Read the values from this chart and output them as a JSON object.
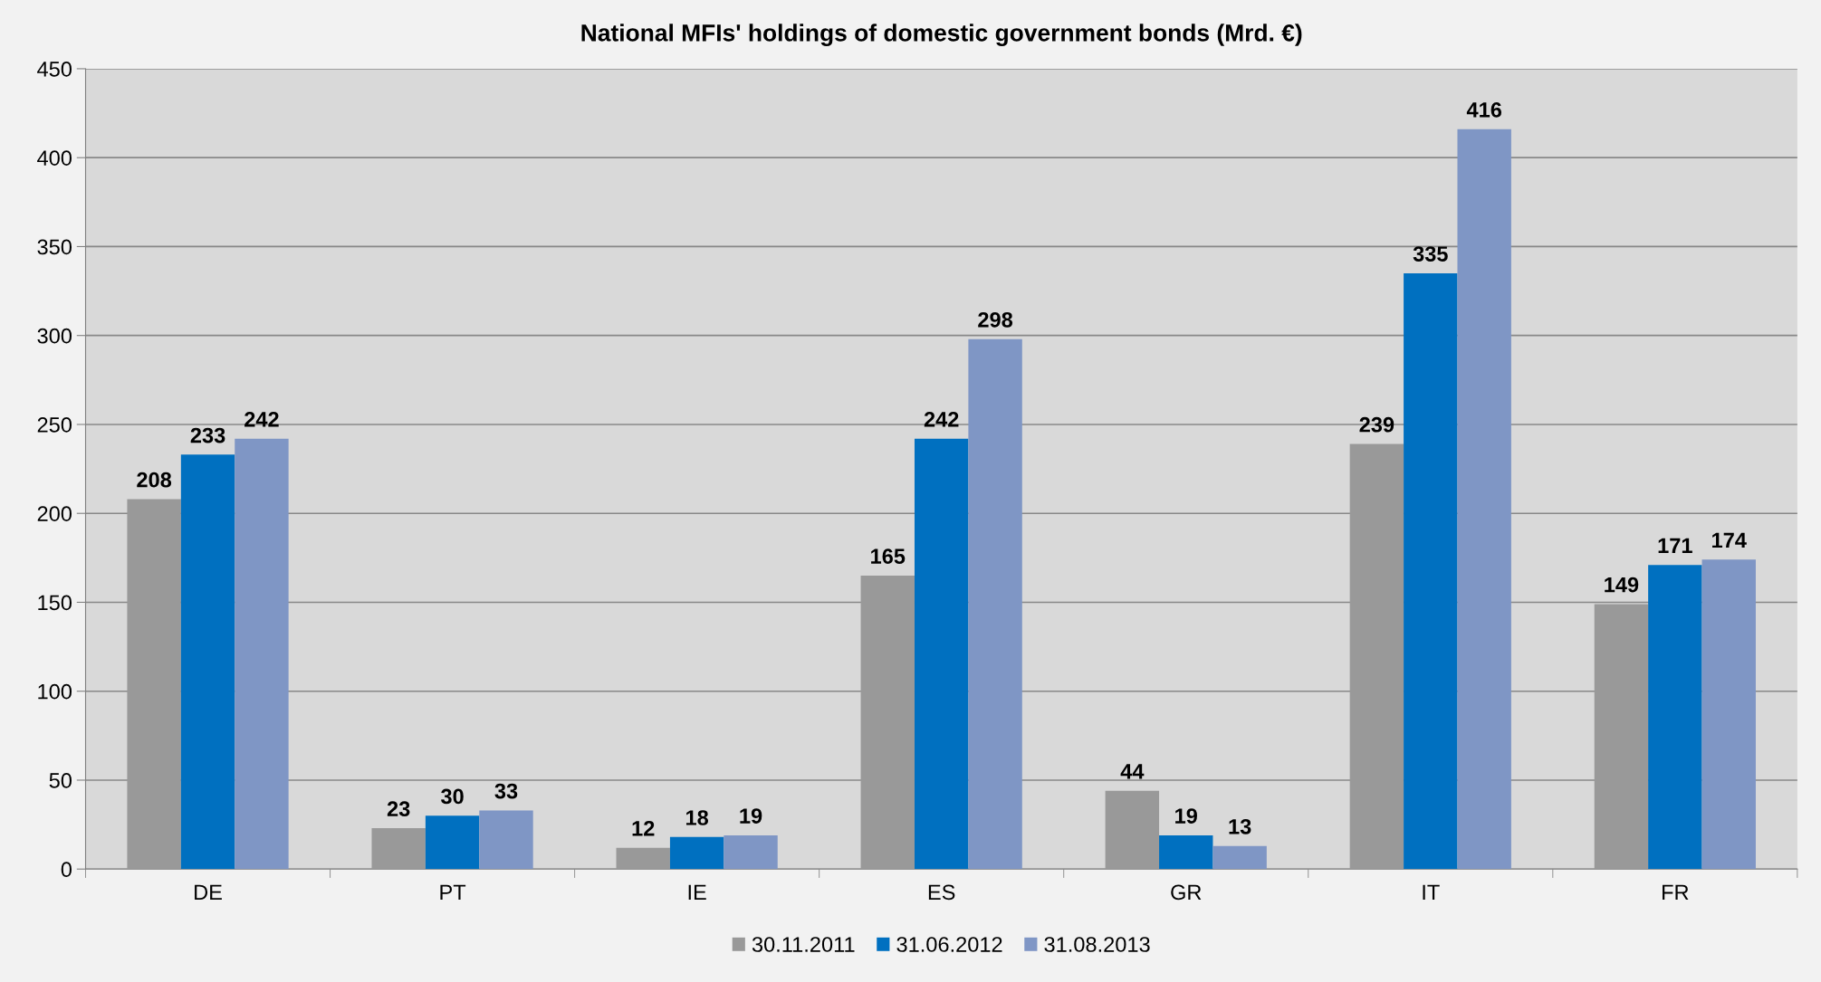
{
  "chart_data": {
    "type": "bar",
    "title": "National MFIs' holdings of domestic government bonds (Mrd. €)",
    "categories": [
      "DE",
      "PT",
      "IE",
      "ES",
      "GR",
      "IT",
      "FR"
    ],
    "series": [
      {
        "name": "30.11.2011",
        "color": "#999999",
        "values": [
          208,
          23,
          12,
          165,
          44,
          239,
          149
        ]
      },
      {
        "name": "31.06.2012",
        "color": "#0070c0",
        "values": [
          233,
          30,
          18,
          242,
          19,
          335,
          171
        ]
      },
      {
        "name": "31.08.2013",
        "color": "#7f96c5",
        "values": [
          242,
          33,
          19,
          298,
          13,
          416,
          174
        ]
      }
    ],
    "ylim": [
      0,
      450
    ],
    "yticks": [
      0,
      50,
      100,
      150,
      200,
      250,
      300,
      350,
      400,
      450
    ],
    "grid": "y",
    "legend": "bottom",
    "data_labels": true
  }
}
